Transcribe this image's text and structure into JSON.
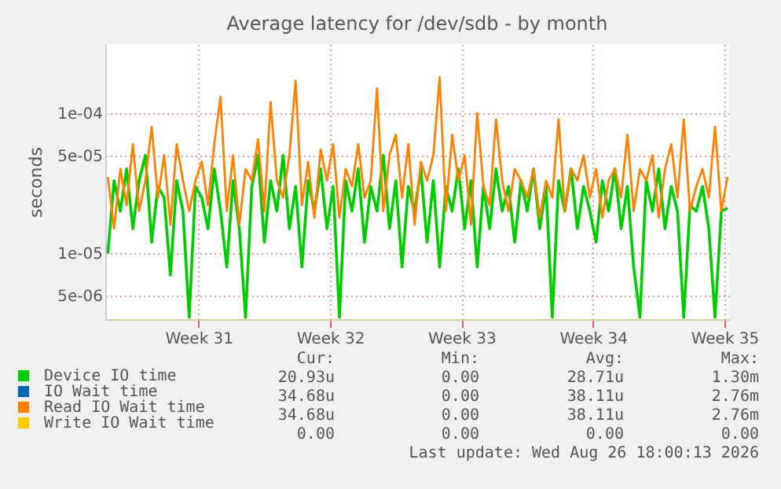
{
  "chart_data": {
    "type": "line",
    "title": "Average latency for /dev/sdb - by month",
    "ylabel": "seconds",
    "log": true,
    "grid": true,
    "legend": "bottom",
    "marker": "none",
    "xlim": [
      "2026-07-22T00:45",
      "2026-08-24T06:00"
    ],
    "xticks": [
      {
        "value": "2026-07-27",
        "label": "Week 31"
      },
      {
        "value": "2026-08-03",
        "label": "Week 32"
      },
      {
        "value": "2026-08-10",
        "label": "Week 33"
      },
      {
        "value": "2026-08-17",
        "label": "Week 34"
      },
      {
        "value": "2026-08-24",
        "label": "Week 35"
      }
    ],
    "ylim": [
      3.4e-06,
      0.00031
    ],
    "yticks": [
      {
        "value": 5e-06,
        "label": "5e-06"
      },
      {
        "value": 1e-05,
        "label": "1e-05"
      },
      {
        "value": 5e-05,
        "label": "5e-05"
      },
      {
        "value": 0.0001,
        "label": "1e-04"
      }
    ],
    "x": [
      "2026-07-22T04:00",
      "2026-07-22T12:00",
      "2026-07-22T20:00",
      "2026-07-23T04:00",
      "2026-07-23T12:00",
      "2026-07-23T20:00",
      "2026-07-24T04:00",
      "2026-07-24T12:00",
      "2026-07-24T20:00",
      "2026-07-25T04:00",
      "2026-07-25T12:00",
      "2026-07-25T20:00",
      "2026-07-26T04:00",
      "2026-07-26T12:00",
      "2026-07-26T20:00",
      "2026-07-27T04:00",
      "2026-07-27T12:00",
      "2026-07-27T20:00",
      "2026-07-28T04:00",
      "2026-07-28T12:00",
      "2026-07-28T20:00",
      "2026-07-29T04:00",
      "2026-07-29T12:00",
      "2026-07-29T20:00",
      "2026-07-30T04:00",
      "2026-07-30T12:00",
      "2026-07-30T20:00",
      "2026-07-31T04:00",
      "2026-07-31T12:00",
      "2026-07-31T20:00",
      "2026-08-01T04:00",
      "2026-08-01T12:00",
      "2026-08-01T20:00",
      "2026-08-02T04:00",
      "2026-08-02T12:00",
      "2026-08-02T20:00",
      "2026-08-03T04:00",
      "2026-08-03T12:00",
      "2026-08-03T20:00",
      "2026-08-04T04:00",
      "2026-08-04T12:00",
      "2026-08-04T20:00",
      "2026-08-05T04:00",
      "2026-08-05T12:00",
      "2026-08-05T20:00",
      "2026-08-06T04:00",
      "2026-08-06T12:00",
      "2026-08-06T20:00",
      "2026-08-07T04:00",
      "2026-08-07T12:00",
      "2026-08-07T20:00",
      "2026-08-08T04:00",
      "2026-08-08T12:00",
      "2026-08-08T20:00",
      "2026-08-09T04:00",
      "2026-08-09T12:00",
      "2026-08-09T20:00",
      "2026-08-10T04:00",
      "2026-08-10T12:00",
      "2026-08-10T20:00",
      "2026-08-11T04:00",
      "2026-08-11T12:00",
      "2026-08-11T20:00",
      "2026-08-12T04:00",
      "2026-08-12T12:00",
      "2026-08-12T20:00",
      "2026-08-13T04:00",
      "2026-08-13T12:00",
      "2026-08-13T20:00",
      "2026-08-14T04:00",
      "2026-08-14T12:00",
      "2026-08-14T20:00",
      "2026-08-15T04:00",
      "2026-08-15T12:00",
      "2026-08-15T20:00",
      "2026-08-16T04:00",
      "2026-08-16T12:00",
      "2026-08-16T20:00",
      "2026-08-17T04:00",
      "2026-08-17T12:00",
      "2026-08-17T20:00",
      "2026-08-18T04:00",
      "2026-08-18T12:00",
      "2026-08-18T20:00",
      "2026-08-19T04:00",
      "2026-08-19T12:00",
      "2026-08-19T20:00",
      "2026-08-20T04:00",
      "2026-08-20T12:00",
      "2026-08-20T20:00",
      "2026-08-21T04:00",
      "2026-08-21T12:00",
      "2026-08-21T20:00",
      "2026-08-22T04:00",
      "2026-08-22T12:00",
      "2026-08-22T20:00",
      "2026-08-23T04:00",
      "2026-08-23T12:00",
      "2026-08-23T20:00",
      "2026-08-24T04:00"
    ],
    "series": [
      {
        "name": "Device IO time",
        "color": "#00cc00",
        "values": [
          1e-05,
          3.3e-05,
          2e-05,
          4e-05,
          1.5e-05,
          3.3e-05,
          5e-05,
          1.2e-05,
          3e-05,
          2.5e-05,
          7e-06,
          3.3e-05,
          2e-05,
          3.5e-06,
          3e-05,
          2.5e-05,
          1.5e-05,
          4e-05,
          2e-05,
          8e-06,
          3.3e-05,
          1.5e-05,
          3.5e-06,
          3e-05,
          5e-05,
          1.2e-05,
          3.3e-05,
          2e-05,
          5e-05,
          1.5e-05,
          3e-05,
          8e-06,
          3.3e-05,
          2e-05,
          4e-05,
          1.5e-05,
          3e-05,
          3.5e-06,
          3.3e-05,
          2e-05,
          4e-05,
          1.2e-05,
          3e-05,
          2e-05,
          5e-05,
          1.5e-05,
          3.3e-05,
          8e-06,
          3e-05,
          2e-05,
          4e-05,
          1.2e-05,
          3.3e-05,
          8e-06,
          3e-05,
          2e-05,
          4e-05,
          1.5e-05,
          3.3e-05,
          8e-06,
          3e-05,
          1.5e-05,
          4e-05,
          2e-05,
          3e-05,
          1.2e-05,
          3.3e-05,
          2e-05,
          4e-05,
          1.5e-05,
          3e-05,
          3.5e-06,
          3.3e-05,
          2e-05,
          4e-05,
          1.5e-05,
          3e-05,
          2e-05,
          1.2e-05,
          3.3e-05,
          2e-05,
          4e-05,
          1.5e-05,
          3e-05,
          8e-06,
          3.5e-06,
          3.3e-05,
          2e-05,
          4e-05,
          1.5e-05,
          3e-05,
          2e-05,
          3.5e-06,
          2.2e-05,
          2e-05,
          3e-05,
          1.5e-05,
          3.5e-06,
          2e-05,
          2.1e-05
        ]
      },
      {
        "name": "IO Wait time",
        "color": "#0066b3",
        "values": [
          null,
          null,
          null,
          null,
          null,
          null,
          null,
          null,
          null,
          null,
          null,
          null,
          null,
          null,
          null,
          null,
          null,
          null,
          null,
          null,
          null,
          null,
          null,
          null,
          null,
          null,
          null,
          null,
          null,
          null,
          null,
          null,
          null,
          null,
          null,
          null,
          null,
          null,
          null,
          null,
          null,
          null,
          null,
          null,
          null,
          null,
          null,
          null,
          null,
          null,
          null,
          null,
          null,
          null,
          null,
          null,
          null,
          null,
          null,
          null,
          null,
          null,
          null,
          null,
          null,
          null,
          null,
          null,
          null,
          null,
          null,
          null,
          null,
          null,
          null,
          null,
          null,
          null,
          null,
          null,
          null,
          null,
          null,
          null,
          null,
          null,
          null,
          null,
          null,
          null,
          null,
          null,
          null,
          null,
          null,
          null,
          null,
          null,
          null,
          null
        ]
      },
      {
        "name": "Read IO Wait time",
        "color": "#ff8000",
        "values": [
          3.5e-05,
          1.5e-05,
          4e-05,
          2.2e-05,
          6e-05,
          2e-05,
          3.3e-05,
          8e-05,
          2.5e-05,
          5e-05,
          1.6e-05,
          6e-05,
          3.3e-05,
          2e-05,
          3.3e-05,
          4.5e-05,
          2.2e-05,
          6e-05,
          0.00013,
          2e-05,
          5e-05,
          1.6e-05,
          4e-05,
          3.3e-05,
          6.5e-05,
          2e-05,
          0.00012,
          3.3e-05,
          2.5e-05,
          5e-05,
          0.00017,
          2.2e-05,
          4.5e-05,
          1.8e-05,
          5.5e-05,
          3.3e-05,
          6e-05,
          1.8e-05,
          4e-05,
          3e-05,
          6e-05,
          2.5e-05,
          3.3e-05,
          0.00015,
          2e-05,
          5e-05,
          7e-05,
          2.5e-05,
          6e-05,
          1.6e-05,
          4.5e-05,
          3.3e-05,
          5e-05,
          0.00018,
          2e-05,
          7e-05,
          3.3e-05,
          5e-05,
          1.6e-05,
          0.0001,
          3e-05,
          2.2e-05,
          9e-05,
          3.3e-05,
          2e-05,
          4e-05,
          3.3e-05,
          2.5e-05,
          4e-05,
          1.8e-05,
          3.3e-05,
          2.5e-05,
          9e-05,
          2e-05,
          4e-05,
          3.3e-05,
          5e-05,
          2.5e-05,
          4e-05,
          1.8e-05,
          3.3e-05,
          4e-05,
          2.5e-05,
          7e-05,
          2e-05,
          4e-05,
          3.3e-05,
          5e-05,
          1.8e-05,
          4e-05,
          6e-05,
          2.5e-05,
          9e-05,
          2e-05,
          3e-05,
          4e-05,
          2.5e-05,
          8e-05,
          2e-05,
          3.5e-05
        ]
      },
      {
        "name": "Write IO Wait time",
        "color": "#ffcc00",
        "values": [
          null,
          null,
          null,
          null,
          null,
          null,
          null,
          null,
          null,
          null,
          null,
          null,
          null,
          null,
          null,
          null,
          null,
          null,
          null,
          null,
          null,
          null,
          null,
          null,
          null,
          null,
          null,
          null,
          null,
          null,
          null,
          null,
          null,
          null,
          null,
          null,
          null,
          null,
          null,
          null,
          null,
          null,
          null,
          null,
          null,
          null,
          null,
          null,
          null,
          null,
          null,
          null,
          null,
          null,
          null,
          null,
          null,
          null,
          null,
          null,
          null,
          null,
          null,
          null,
          null,
          null,
          null,
          null,
          null,
          null,
          null,
          null,
          null,
          null,
          null,
          null,
          null,
          null,
          null,
          null,
          null,
          null,
          null,
          null,
          null,
          null,
          null,
          null,
          null,
          null,
          null,
          null,
          null,
          null,
          null,
          null,
          null,
          null,
          null,
          null
        ]
      }
    ],
    "annotations": [
      "Cur:",
      "Min:",
      "Avg:",
      "Max:",
      "20.93u",
      "0.00",
      "28.71u",
      "1.30m",
      "34.68u",
      "0.00",
      "38.11u",
      "2.76m",
      "34.68u",
      "0.00",
      "38.11u",
      "2.76m",
      "0.00",
      "0.00",
      "0.00",
      "0.00",
      "Last update: Wed Aug 26 18:00:13 2026"
    ]
  }
}
